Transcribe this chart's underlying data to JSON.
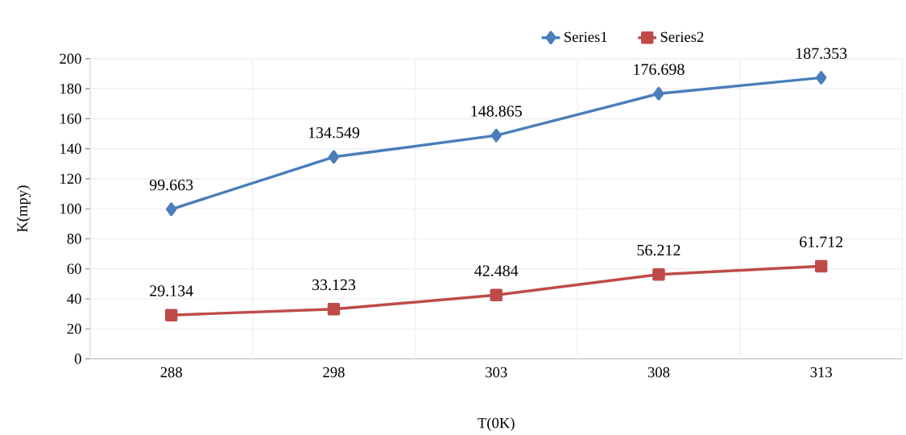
{
  "chart_data": {
    "type": "line",
    "xlabel": "T(0K)",
    "ylabel": "K(mpy)",
    "categories": [
      "288",
      "298",
      "303",
      "308",
      "313"
    ],
    "series": [
      {
        "name": "Series1",
        "color": "#4a7ebb",
        "marker": "diamond",
        "values": [
          99.663,
          134.549,
          148.865,
          176.698,
          187.353
        ]
      },
      {
        "name": "Series2",
        "color": "#be4b48",
        "marker": "square",
        "values": [
          29.134,
          33.123,
          42.484,
          56.212,
          61.712
        ]
      }
    ],
    "ylim": [
      0,
      200
    ],
    "yticks": [
      0,
      20,
      40,
      60,
      80,
      100,
      120,
      140,
      160,
      180,
      200
    ],
    "grid": true,
    "legend": "top right",
    "data_labels": true,
    "line_style": "solid"
  }
}
